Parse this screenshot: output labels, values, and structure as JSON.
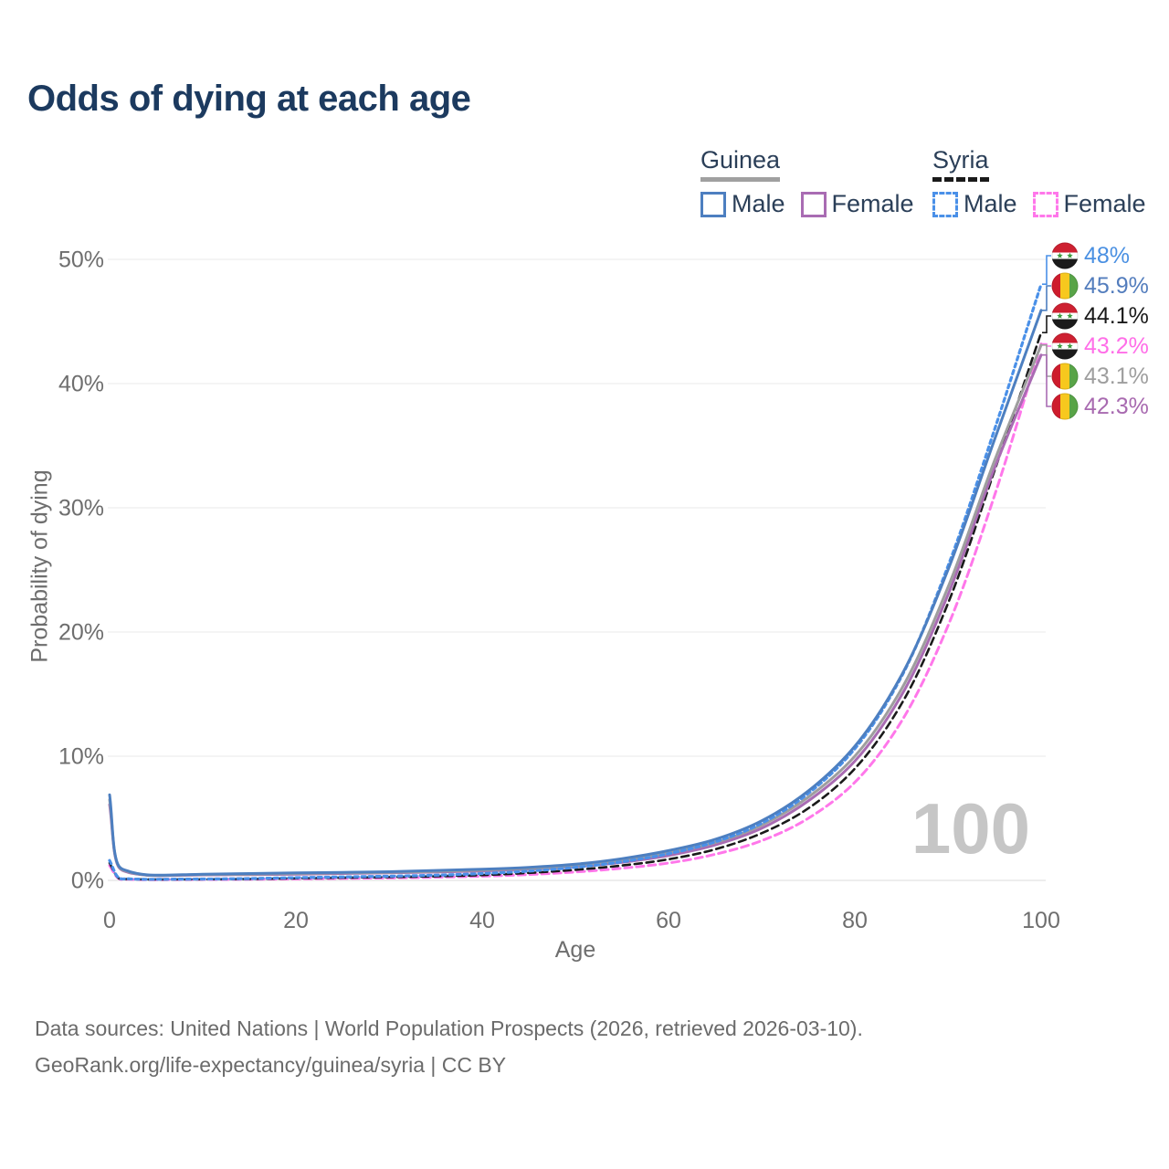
{
  "header": {
    "title": "Odds of dying at each age"
  },
  "legend": {
    "groups": [
      {
        "name": "Guinea",
        "line_style": "solid",
        "underline_color": "#a0a0a0",
        "entries": [
          {
            "label": "Male",
            "color": "#4d7fc0",
            "dash": false
          },
          {
            "label": "Female",
            "color": "#a96cb3",
            "dash": false
          }
        ]
      },
      {
        "name": "Syria",
        "line_style": "dashed",
        "underline_color": "#1a1a1a",
        "entries": [
          {
            "label": "Male",
            "color": "#4a90e8",
            "dash": true
          },
          {
            "label": "Female",
            "color": "#ff77ea",
            "dash": true
          }
        ]
      }
    ]
  },
  "watermark_age": "100",
  "chart_data": {
    "type": "line",
    "title": "Odds of dying at each age",
    "x": {
      "label": "Age",
      "min": 0,
      "max": 100,
      "ticks": [
        {
          "v": 0,
          "label": "0"
        },
        {
          "v": 20,
          "label": "20"
        },
        {
          "v": 40,
          "label": "40"
        },
        {
          "v": 60,
          "label": "60"
        },
        {
          "v": 80,
          "label": "80"
        },
        {
          "v": 100,
          "label": "100"
        }
      ]
    },
    "y": {
      "label": "Probability of dying",
      "min": 0,
      "max": 50,
      "unit": "%",
      "ticks": [
        {
          "v": 0,
          "label": "0%"
        },
        {
          "v": 10,
          "label": "10%"
        },
        {
          "v": 20,
          "label": "20%"
        },
        {
          "v": 30,
          "label": "30%"
        },
        {
          "v": 40,
          "label": "40%"
        },
        {
          "v": 50,
          "label": "50%"
        }
      ]
    },
    "grid": true,
    "legend_position": "top-right",
    "series": [
      {
        "id": "syria-female",
        "name": "Syria Female",
        "color": "#ff77ea",
        "dash": "8 5",
        "width": 3,
        "points": [
          [
            0,
            1.2
          ],
          [
            1,
            0.14
          ],
          [
            2,
            0.09
          ],
          [
            3,
            0.07
          ],
          [
            4,
            0.06
          ],
          [
            5,
            0.06
          ],
          [
            10,
            0.07
          ],
          [
            15,
            0.09
          ],
          [
            20,
            0.12
          ],
          [
            25,
            0.16
          ],
          [
            30,
            0.2
          ],
          [
            35,
            0.26
          ],
          [
            40,
            0.34
          ],
          [
            45,
            0.47
          ],
          [
            50,
            0.68
          ],
          [
            55,
            0.98
          ],
          [
            60,
            1.4
          ],
          [
            65,
            2.1
          ],
          [
            70,
            3.2
          ],
          [
            75,
            5.0
          ],
          [
            80,
            7.9
          ],
          [
            85,
            12.8
          ],
          [
            90,
            20.5
          ],
          [
            95,
            31.0
          ],
          [
            100,
            43.2
          ]
        ]
      },
      {
        "id": "syria-total",
        "name": "Syria",
        "color": "#1a1a1a",
        "dash": "8 5",
        "width": 2.6,
        "points": [
          [
            0,
            1.4
          ],
          [
            1,
            0.17
          ],
          [
            2,
            0.11
          ],
          [
            3,
            0.09
          ],
          [
            4,
            0.08
          ],
          [
            5,
            0.08
          ],
          [
            10,
            0.09
          ],
          [
            15,
            0.12
          ],
          [
            20,
            0.17
          ],
          [
            25,
            0.22
          ],
          [
            30,
            0.27
          ],
          [
            35,
            0.33
          ],
          [
            40,
            0.43
          ],
          [
            45,
            0.6
          ],
          [
            50,
            0.85
          ],
          [
            55,
            1.2
          ],
          [
            60,
            1.7
          ],
          [
            65,
            2.5
          ],
          [
            70,
            3.8
          ],
          [
            75,
            5.8
          ],
          [
            80,
            9.0
          ],
          [
            85,
            14.2
          ],
          [
            90,
            22.3
          ],
          [
            95,
            33.0
          ],
          [
            100,
            44.1
          ]
        ]
      },
      {
        "id": "guinea-female",
        "name": "Guinea Female",
        "color": "#a96cb3",
        "dash": null,
        "width": 3,
        "points": [
          [
            0,
            6.1
          ],
          [
            1,
            1.05
          ],
          [
            2,
            0.65
          ],
          [
            3,
            0.5
          ],
          [
            4,
            0.41
          ],
          [
            5,
            0.38
          ],
          [
            10,
            0.44
          ],
          [
            15,
            0.46
          ],
          [
            20,
            0.5
          ],
          [
            25,
            0.55
          ],
          [
            30,
            0.6
          ],
          [
            35,
            0.67
          ],
          [
            40,
            0.76
          ],
          [
            45,
            0.9
          ],
          [
            50,
            1.1
          ],
          [
            55,
            1.45
          ],
          [
            60,
            2.0
          ],
          [
            65,
            2.85
          ],
          [
            70,
            4.2
          ],
          [
            75,
            6.4
          ],
          [
            80,
            9.6
          ],
          [
            85,
            14.9
          ],
          [
            90,
            23.0
          ],
          [
            95,
            33.2
          ],
          [
            100,
            42.3
          ]
        ]
      },
      {
        "id": "guinea-total",
        "name": "Guinea",
        "color": "#9e9e9e",
        "dash": null,
        "width": 3,
        "points": [
          [
            0,
            6.5
          ],
          [
            1,
            1.1
          ],
          [
            2,
            0.7
          ],
          [
            3,
            0.52
          ],
          [
            4,
            0.43
          ],
          [
            5,
            0.4
          ],
          [
            10,
            0.47
          ],
          [
            15,
            0.5
          ],
          [
            20,
            0.55
          ],
          [
            25,
            0.6
          ],
          [
            30,
            0.65
          ],
          [
            35,
            0.73
          ],
          [
            40,
            0.83
          ],
          [
            45,
            0.97
          ],
          [
            50,
            1.2
          ],
          [
            55,
            1.6
          ],
          [
            60,
            2.2
          ],
          [
            65,
            3.05
          ],
          [
            70,
            4.45
          ],
          [
            75,
            6.7
          ],
          [
            80,
            10.0
          ],
          [
            85,
            15.4
          ],
          [
            90,
            23.6
          ],
          [
            95,
            33.8
          ],
          [
            100,
            43.1
          ]
        ]
      },
      {
        "id": "syria-male",
        "name": "Syria Male",
        "color": "#4a90e8",
        "dash": "4 4",
        "width": 3.2,
        "points": [
          [
            0,
            1.6
          ],
          [
            1,
            0.2
          ],
          [
            2,
            0.13
          ],
          [
            3,
            0.1
          ],
          [
            4,
            0.09
          ],
          [
            5,
            0.09
          ],
          [
            10,
            0.11
          ],
          [
            15,
            0.15
          ],
          [
            20,
            0.22
          ],
          [
            25,
            0.28
          ],
          [
            30,
            0.34
          ],
          [
            35,
            0.42
          ],
          [
            40,
            0.55
          ],
          [
            45,
            0.75
          ],
          [
            50,
            1.05
          ],
          [
            55,
            1.5
          ],
          [
            60,
            2.15
          ],
          [
            65,
            3.1
          ],
          [
            70,
            4.6
          ],
          [
            75,
            7.0
          ],
          [
            80,
            10.6
          ],
          [
            85,
            16.4
          ],
          [
            90,
            25.3
          ],
          [
            95,
            36.3
          ],
          [
            100,
            48.0
          ]
        ]
      },
      {
        "id": "guinea-male",
        "name": "Guinea Male",
        "color": "#4d7fc0",
        "dash": null,
        "width": 3,
        "points": [
          [
            0,
            6.9
          ],
          [
            1,
            1.15
          ],
          [
            2,
            0.75
          ],
          [
            3,
            0.55
          ],
          [
            4,
            0.45
          ],
          [
            5,
            0.42
          ],
          [
            10,
            0.5
          ],
          [
            15,
            0.55
          ],
          [
            20,
            0.6
          ],
          [
            25,
            0.65
          ],
          [
            30,
            0.7
          ],
          [
            35,
            0.8
          ],
          [
            40,
            0.9
          ],
          [
            45,
            1.05
          ],
          [
            50,
            1.3
          ],
          [
            55,
            1.75
          ],
          [
            60,
            2.4
          ],
          [
            65,
            3.3
          ],
          [
            70,
            4.8
          ],
          [
            75,
            7.2
          ],
          [
            80,
            10.8
          ],
          [
            85,
            16.5
          ],
          [
            90,
            25.0
          ],
          [
            95,
            35.5
          ],
          [
            100,
            45.9
          ]
        ]
      }
    ],
    "end_labels": [
      {
        "text": "48%",
        "color": "#4a90e2",
        "flag": "syria",
        "series": "syria-male"
      },
      {
        "text": "45.9%",
        "color": "#537dbd",
        "flag": "guinea",
        "series": "guinea-male"
      },
      {
        "text": "44.1%",
        "color": "#1a1a1a",
        "flag": "syria",
        "series": "syria-total"
      },
      {
        "text": "43.2%",
        "color": "#ff6ee8",
        "flag": "syria",
        "series": "syria-female"
      },
      {
        "text": "43.1%",
        "color": "#9e9e9e",
        "flag": "guinea",
        "series": "guinea-total"
      },
      {
        "text": "42.3%",
        "color": "#a86ab0",
        "flag": "guinea",
        "series": "guinea-female"
      }
    ],
    "flags": {
      "syria": {
        "red": "#ce2031",
        "white": "#ffffff",
        "black": "#1b1b1b",
        "star_green": "#3e9c3e"
      },
      "guinea": {
        "red": "#ce1c2c",
        "yellow": "#f7c81e",
        "green": "#58a447"
      }
    }
  },
  "footer": {
    "line1": "Data sources: United Nations | World Population Prospects (2026, retrieved 2026-03-10).",
    "line2": "GeoRank.org/life-expectancy/guinea/syria | CC BY"
  }
}
